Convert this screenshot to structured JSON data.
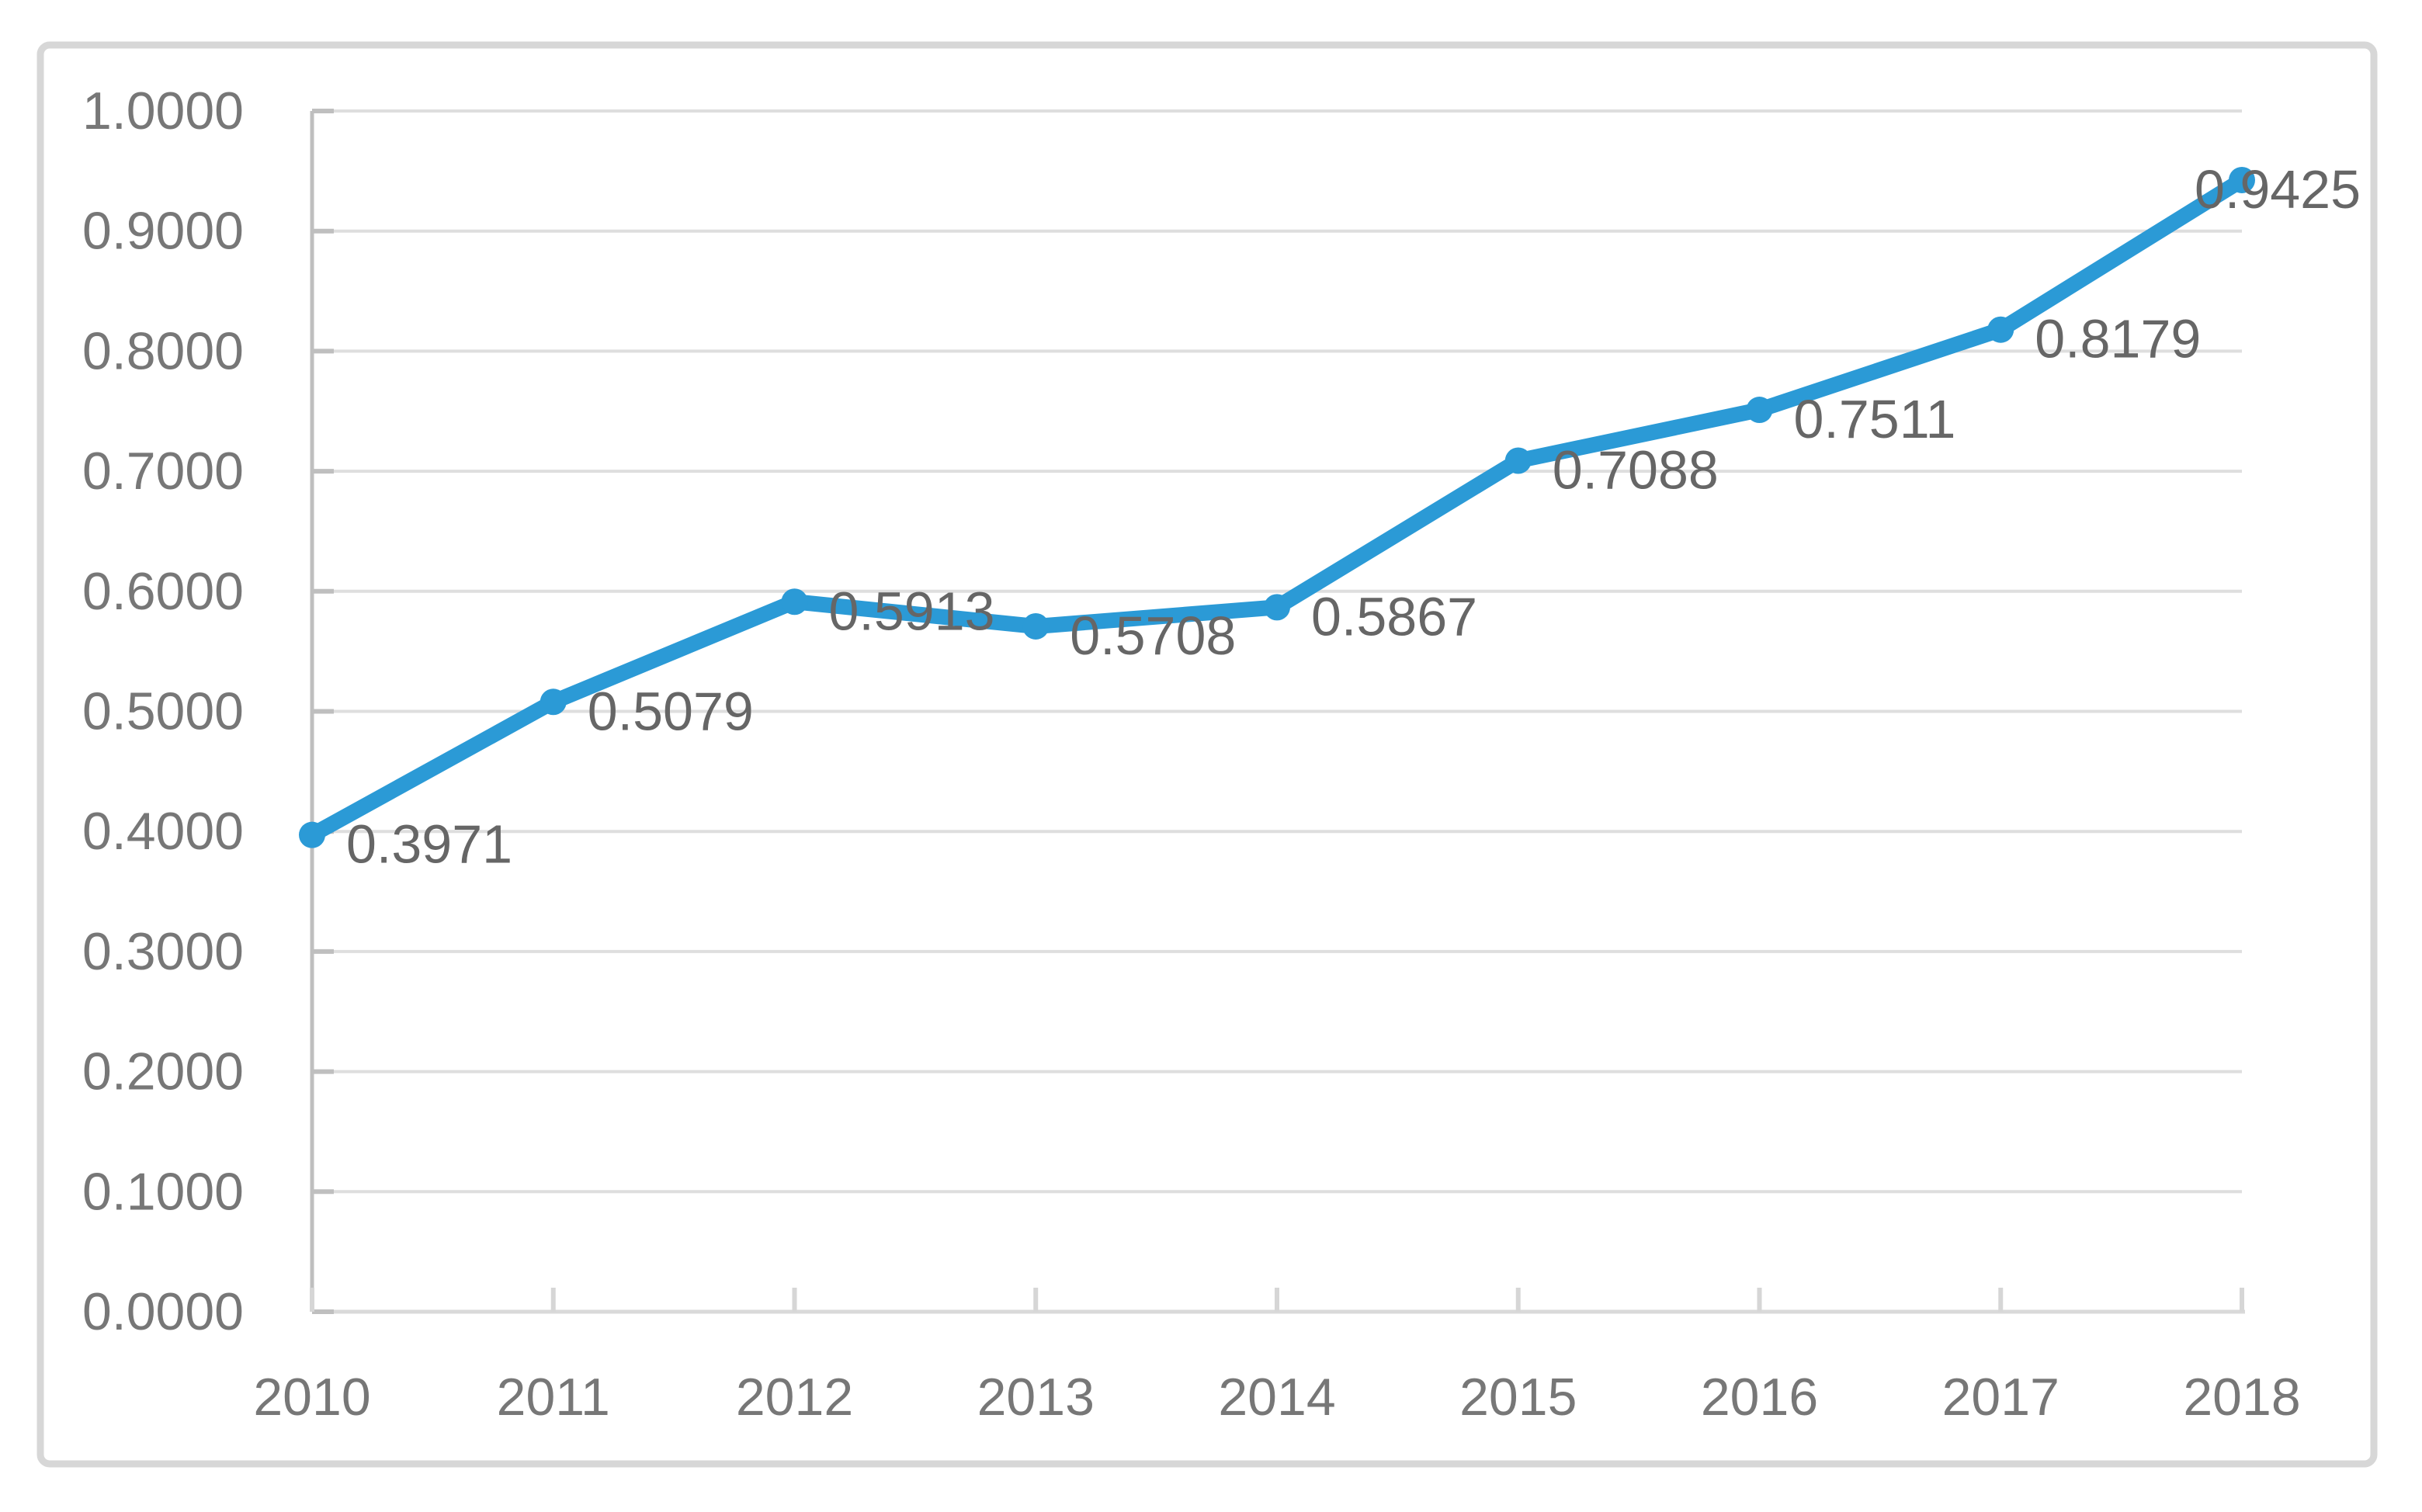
{
  "chart_data": {
    "type": "line",
    "title": "",
    "categories": [
      "2010",
      "2011",
      "2012",
      "2013",
      "2014",
      "2015",
      "2016",
      "2017",
      "2018"
    ],
    "series": [
      {
        "name": "",
        "values": [
          0.3971,
          0.5079,
          0.5913,
          0.5708,
          0.5867,
          0.7088,
          0.7511,
          0.8179,
          0.9425
        ],
        "point_labels": [
          "0.3971",
          "0.5079",
          "0.5913",
          "0.5708",
          "0.5867",
          "0.7088",
          "0.7511",
          "0.8179",
          "0.9425"
        ]
      }
    ],
    "xlabel": "",
    "ylabel": "",
    "ylim": [
      0.0,
      1.0
    ],
    "y_step": 0.1,
    "y_tick_labels_bottom_to_top": [
      "0.0000",
      "0.1000",
      "0.2000",
      "0.3000",
      "0.4000",
      "0.5000",
      "0.6000",
      "0.7000",
      "0.8000",
      "0.9000",
      "1.0000"
    ],
    "grid": "horizontal",
    "legend_position": "none",
    "marker": "circle",
    "colors": {
      "line": "#2B9AD6",
      "marker": "#2B9AD6",
      "gridline": "#DEDEDE",
      "y_axis": "#BFBFBF",
      "x_axis": "#D9D9D9",
      "y_tick": "#BFBFBF",
      "x_tick": "#D6D6D6",
      "axis_label_text": "#777777",
      "data_label_text": "#666666",
      "frame_border": "#D7D7D7",
      "background": "#FFFFFF"
    }
  }
}
